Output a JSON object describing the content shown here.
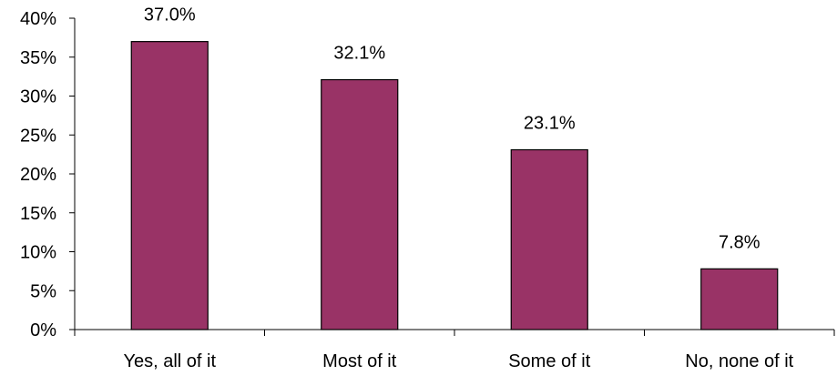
{
  "chart_data": {
    "type": "bar",
    "categories": [
      "Yes, all of it",
      "Most of it",
      "Some of it",
      "No, none of it"
    ],
    "values": [
      37.0,
      32.1,
      23.1,
      7.8
    ],
    "data_labels": [
      "37.0%",
      "32.1%",
      "23.1%",
      "7.8%"
    ],
    "y_ticks": [
      "0%",
      "5%",
      "10%",
      "15%",
      "20%",
      "25%",
      "30%",
      "35%",
      "40%"
    ],
    "ylim": [
      0,
      40
    ],
    "y_unit": "%",
    "grid": false,
    "legend": "none",
    "bar_color": "#993366",
    "bar_border": "#000000"
  }
}
